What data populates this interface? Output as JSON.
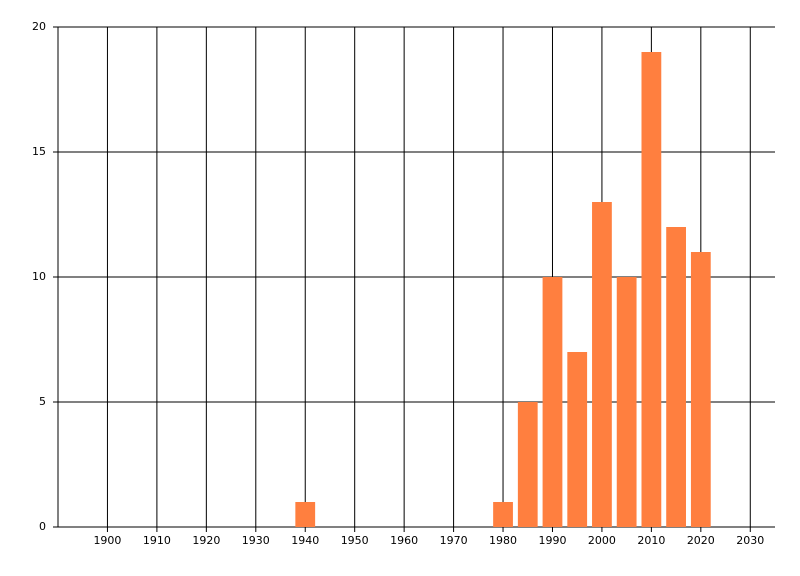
{
  "chart_data": {
    "type": "bar",
    "x": [
      1940,
      1980,
      1985,
      1990,
      1995,
      2000,
      2005,
      2010,
      2015,
      2020
    ],
    "values": [
      1,
      1,
      5,
      10,
      7,
      13,
      10,
      19,
      12,
      11
    ],
    "color": "#ff7f3f",
    "xlim": [
      1890,
      2035
    ],
    "xticks": [
      1900,
      1910,
      1920,
      1930,
      1940,
      1950,
      1960,
      1970,
      1980,
      1990,
      2000,
      2010,
      2020,
      2030
    ],
    "ylim": [
      0,
      20
    ],
    "yticks": [
      0,
      5,
      10,
      15,
      20
    ],
    "grid": true
  }
}
